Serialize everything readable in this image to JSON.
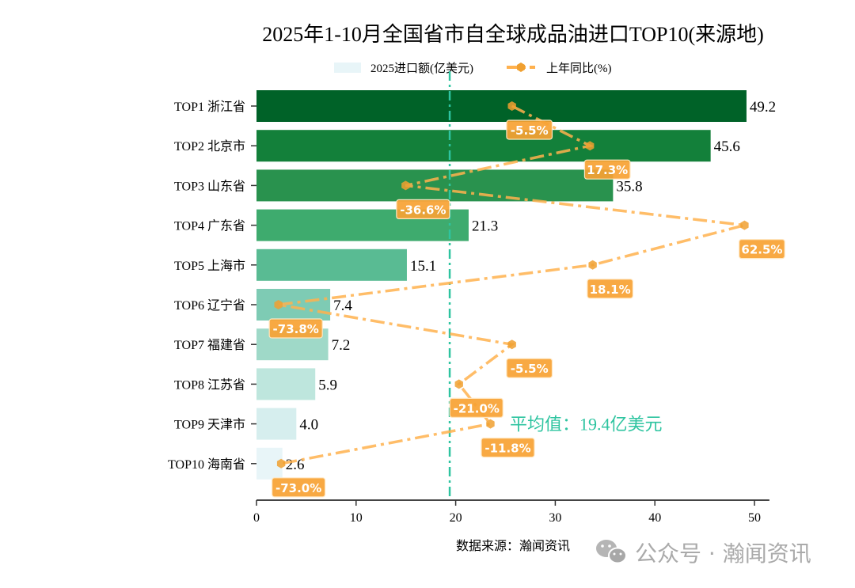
{
  "chart_data": {
    "type": "bar",
    "orientation": "horizontal",
    "title": "2025年1-10月全国省市自全球成品油进口TOP10(来源地)",
    "categories": [
      "TOP1 浙江省",
      "TOP2 北京市",
      "TOP3 山东省",
      "TOP4 广东省",
      "TOP5 上海市",
      "TOP6 辽宁省",
      "TOP7 福建省",
      "TOP8 江苏省",
      "TOP9 天津市",
      "TOP10 海南省"
    ],
    "series": [
      {
        "name": "2025进口额(亿美元)",
        "type": "bar",
        "values": [
          49.2,
          45.6,
          35.8,
          21.3,
          15.1,
          7.4,
          7.2,
          5.9,
          4.0,
          2.6
        ],
        "value_labels": [
          "49.2",
          "45.6",
          "35.8",
          "21.3",
          "15.1",
          "7.4",
          "7.2",
          "5.9",
          "4.0",
          "2.6"
        ]
      },
      {
        "name": "上年同比(%)",
        "type": "line",
        "style": "dash-dot",
        "marker": "hexagon",
        "values": [
          -5.5,
          17.3,
          -36.6,
          62.5,
          18.1,
          -73.8,
          -5.5,
          -21.0,
          -11.8,
          -73.0
        ],
        "value_labels": [
          "-5.5%",
          "17.3%",
          "-36.6%",
          "62.5%",
          "18.1%",
          "-73.8%",
          "-5.5%",
          "-21.0%",
          "-11.8%",
          "-73.0%"
        ]
      }
    ],
    "xlim": [
      0,
      51.5
    ],
    "xticks": [
      "0",
      "10",
      "20",
      "30",
      "40",
      "50"
    ],
    "mean_line": {
      "value": 19.4,
      "label": "平均值：19.4亿美元"
    },
    "legend_placement": "top-center",
    "grid": false,
    "colors": {
      "bars": [
        "#006228",
        "#13803a",
        "#29924e",
        "#3eab6e",
        "#59bb93",
        "#7ecbb4",
        "#9fd9c8",
        "#bee6dd",
        "#d6eeee",
        "#e8f5f8"
      ],
      "line": "#ffb14e",
      "marker": "#f0a030",
      "label_bg": "#f7a233",
      "mean": "#2ec4a0"
    }
  },
  "footer": {
    "source": "数据来源：瀚闻资讯",
    "watermark": "公众号 · 瀚闻资讯",
    "watermark_icon": "wechat-icon"
  }
}
